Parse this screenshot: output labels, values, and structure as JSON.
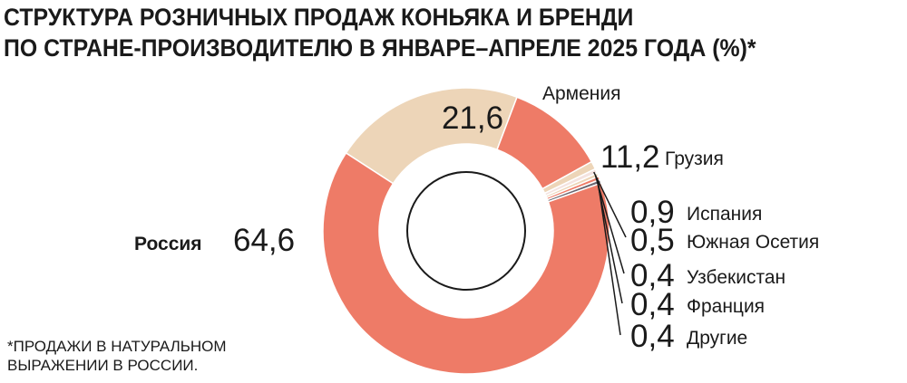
{
  "title": {
    "line1": "СТРУКТУРА РОЗНИЧНЫХ ПРОДАЖ КОНЬЯКА И БРЕНДИ",
    "line2": "ПО СТРАНЕ-ПРОИЗВОДИТЕЛЮ В ЯНВАРЕ–АПРЕЛЕ 2025 ГОДА (%)*"
  },
  "footnote": {
    "line1": "*ПРОДАЖИ В НАТУРАЛЬНОМ",
    "line2": "ВЫРАЖЕНИИ В РОССИИ."
  },
  "colors": {
    "primary": "#ee7b67",
    "secondary": "#edd5b8",
    "dark": "#6b6671",
    "light": "#f4e3e0"
  },
  "chart_data": {
    "type": "pie",
    "subtype": "donut",
    "unit": "%",
    "slices": [
      {
        "label": "Армения",
        "value": 21.6,
        "value_text": "21,6",
        "color": "#edd5b8"
      },
      {
        "label": "Грузия",
        "value": 11.2,
        "value_text": "11,2",
        "color": "#ee7b67"
      },
      {
        "label": "Испания",
        "value": 0.9,
        "value_text": "0,9",
        "color": "#edd5b8"
      },
      {
        "label": "Южная Осетия",
        "value": 0.5,
        "value_text": "0,5",
        "color": "#f4e3e0"
      },
      {
        "label": "Узбекистан",
        "value": 0.4,
        "value_text": "0,4",
        "color": "#edd5b8"
      },
      {
        "label": "Франция",
        "value": 0.4,
        "value_text": "0,4",
        "color": "#ee7b67"
      },
      {
        "label": "Другие",
        "value": 0.4,
        "value_text": "0,4",
        "color": "#6b6671"
      },
      {
        "label": "Россия",
        "value": 64.6,
        "value_text": "64,6",
        "color": "#ee7b67"
      }
    ]
  }
}
